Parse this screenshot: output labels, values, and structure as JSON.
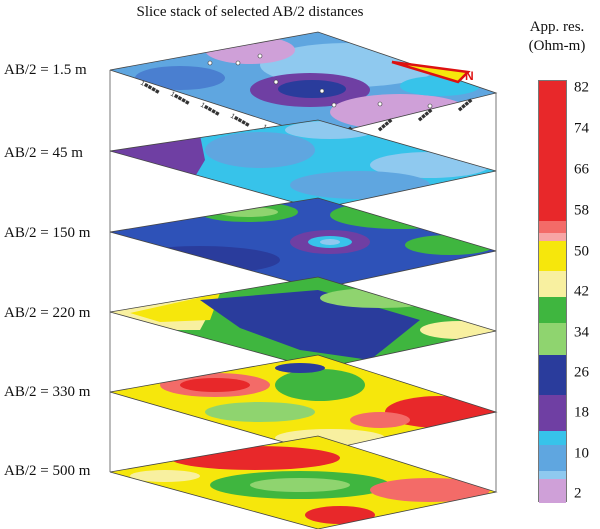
{
  "title": "Slice stack of selected AB/2 distances",
  "slice_labels": [
    "AB/2 = 1.5 m",
    "AB/2 = 45 m",
    "AB/2 = 150 m",
    "AB/2 = 220 m",
    "AB/2 = 330 m",
    "AB/2 = 500 m"
  ],
  "north_label": "N",
  "legend": {
    "title_line1": "App. res.",
    "title_line2": "(Ohm-m)",
    "ticks": [
      "82",
      "74",
      "66",
      "58",
      "50",
      "42",
      "34",
      "26",
      "18",
      "10",
      "2"
    ],
    "colors": {
      "red": "#e8282a",
      "light_red": "#f36b68",
      "pink": "#f7a5a5",
      "yellow": "#f6e70c",
      "light_yellow": "#f8f0a0",
      "green": "#3fb63f",
      "light_green": "#8fd46f",
      "dark_blue": "#2a3c9c",
      "blue": "#2e52b8",
      "purple": "#6f3fa3",
      "cyan": "#37c3ea",
      "light_blue": "#5fa6e0",
      "sky": "#8fc9ef",
      "lilac": "#cfa0d8"
    }
  }
}
